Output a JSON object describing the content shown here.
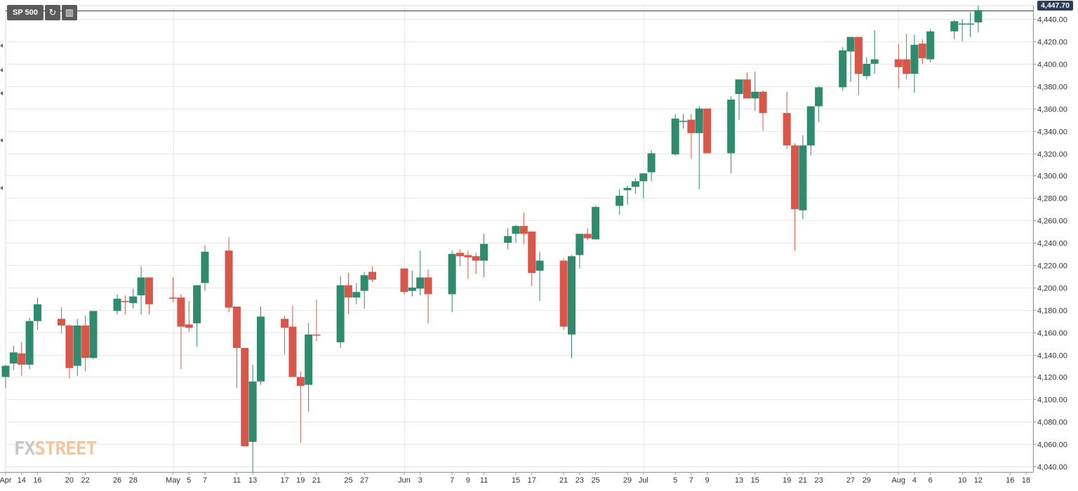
{
  "toolbar": {
    "symbol_label": "SP 500",
    "refresh_icon": "refresh-icon",
    "chart_type_icon": "candlestick-chart-icon"
  },
  "logo": {
    "part1": "FX",
    "part2": "STREET"
  },
  "last_price_label": "4,447.70",
  "colors": {
    "up": "#2e8b6e",
    "down": "#d9574a",
    "grid": "#e8e8e8",
    "axis_text": "#333333",
    "badge": "#2c3e5c"
  },
  "chart_data": {
    "type": "candlestick",
    "title": "",
    "xlabel": "",
    "ylabel": "",
    "ylim": [
      4035,
      4452
    ],
    "y_ticks": [
      "4,040.00",
      "4,060.00",
      "4,080.00",
      "4,100.00",
      "4,120.00",
      "4,140.00",
      "4,160.00",
      "4,180.00",
      "4,200.00",
      "4,220.00",
      "4,240.00",
      "4,260.00",
      "4,280.00",
      "4,300.00",
      "4,320.00",
      "4,340.00",
      "4,360.00",
      "4,380.00",
      "4,400.00",
      "4,420.00",
      "4,440.00"
    ],
    "y_tick_values": [
      4040,
      4060,
      4080,
      4100,
      4120,
      4140,
      4160,
      4180,
      4200,
      4220,
      4240,
      4260,
      4280,
      4300,
      4320,
      4340,
      4360,
      4380,
      4400,
      4420,
      4440
    ],
    "x_ticks": [
      {
        "label": "Apr",
        "day": "2021-04-12"
      },
      {
        "label": "14",
        "day": "2021-04-14"
      },
      {
        "label": "16",
        "day": "2021-04-16"
      },
      {
        "label": "20",
        "day": "2021-04-20"
      },
      {
        "label": "22",
        "day": "2021-04-22"
      },
      {
        "label": "26",
        "day": "2021-04-26"
      },
      {
        "label": "28",
        "day": "2021-04-28"
      },
      {
        "label": "May",
        "day": "2021-05-03"
      },
      {
        "label": "5",
        "day": "2021-05-05"
      },
      {
        "label": "7",
        "day": "2021-05-07"
      },
      {
        "label": "11",
        "day": "2021-05-11"
      },
      {
        "label": "13",
        "day": "2021-05-13"
      },
      {
        "label": "17",
        "day": "2021-05-17"
      },
      {
        "label": "19",
        "day": "2021-05-19"
      },
      {
        "label": "21",
        "day": "2021-05-21"
      },
      {
        "label": "25",
        "day": "2021-05-25"
      },
      {
        "label": "27",
        "day": "2021-05-27"
      },
      {
        "label": "Jun",
        "day": "2021-06-01"
      },
      {
        "label": "3",
        "day": "2021-06-03"
      },
      {
        "label": "7",
        "day": "2021-06-07"
      },
      {
        "label": "9",
        "day": "2021-06-09"
      },
      {
        "label": "11",
        "day": "2021-06-11"
      },
      {
        "label": "15",
        "day": "2021-06-15"
      },
      {
        "label": "17",
        "day": "2021-06-17"
      },
      {
        "label": "21",
        "day": "2021-06-21"
      },
      {
        "label": "23",
        "day": "2021-06-23"
      },
      {
        "label": "25",
        "day": "2021-06-25"
      },
      {
        "label": "29",
        "day": "2021-06-29"
      },
      {
        "label": "Jul",
        "day": "2021-07-01"
      },
      {
        "label": "5",
        "day": "2021-07-05"
      },
      {
        "label": "7",
        "day": "2021-07-07"
      },
      {
        "label": "9",
        "day": "2021-07-09"
      },
      {
        "label": "13",
        "day": "2021-07-13"
      },
      {
        "label": "15",
        "day": "2021-07-15"
      },
      {
        "label": "19",
        "day": "2021-07-19"
      },
      {
        "label": "21",
        "day": "2021-07-21"
      },
      {
        "label": "23",
        "day": "2021-07-23"
      },
      {
        "label": "27",
        "day": "2021-07-27"
      },
      {
        "label": "29",
        "day": "2021-07-29"
      },
      {
        "label": "Aug",
        "day": "2021-08-02"
      },
      {
        "label": "4",
        "day": "2021-08-04"
      },
      {
        "label": "6",
        "day": "2021-08-06"
      },
      {
        "label": "10",
        "day": "2021-08-10"
      },
      {
        "label": "12",
        "day": "2021-08-12"
      },
      {
        "label": "16",
        "day": "2021-08-16"
      },
      {
        "label": "18",
        "day": "2021-08-18"
      }
    ],
    "x_month_grid": [
      "2021-05-03",
      "2021-06-01",
      "2021-07-01",
      "2021-08-02"
    ],
    "x_range": [
      "2021-04-12",
      "2021-08-18"
    ],
    "grid": true,
    "last_price": 4447.7,
    "candles": [
      {
        "date": "2021-04-12",
        "open": 4120,
        "high": 4131,
        "low": 4110,
        "close": 4130
      },
      {
        "date": "2021-04-13",
        "open": 4132,
        "high": 4148,
        "low": 4126,
        "close": 4142
      },
      {
        "date": "2021-04-14",
        "open": 4141,
        "high": 4151,
        "low": 4121,
        "close": 4131
      },
      {
        "date": "2021-04-15",
        "open": 4131,
        "high": 4173,
        "low": 4127,
        "close": 4170
      },
      {
        "date": "2021-04-16",
        "open": 4170,
        "high": 4191,
        "low": 4162,
        "close": 4185
      },
      {
        "date": "2021-04-19",
        "open": 4172,
        "high": 4182,
        "low": 4159,
        "close": 4166
      },
      {
        "date": "2021-04-20",
        "open": 4166,
        "high": 4167,
        "low": 4119,
        "close": 4128
      },
      {
        "date": "2021-04-21",
        "open": 4130,
        "high": 4172,
        "low": 4121,
        "close": 4166
      },
      {
        "date": "2021-04-22",
        "open": 4166,
        "high": 4175,
        "low": 4125,
        "close": 4137
      },
      {
        "date": "2021-04-23",
        "open": 4137,
        "high": 4179,
        "low": 4136,
        "close": 4179
      },
      {
        "date": "2021-04-26",
        "open": 4179,
        "high": 4194,
        "low": 4176,
        "close": 4190
      },
      {
        "date": "2021-04-27",
        "open": 4188,
        "high": 4193,
        "low": 4176,
        "close": 4187
      },
      {
        "date": "2021-04-28",
        "open": 4186,
        "high": 4199,
        "low": 4181,
        "close": 4192
      },
      {
        "date": "2021-04-29",
        "open": 4193,
        "high": 4219,
        "low": 4176,
        "close": 4209
      },
      {
        "date": "2021-04-30",
        "open": 4209,
        "high": 4209,
        "low": 4176,
        "close": 4185
      },
      {
        "date": "2021-05-03",
        "open": 4191,
        "high": 4209,
        "low": 4187,
        "close": 4190
      },
      {
        "date": "2021-05-04",
        "open": 4191,
        "high": 4194,
        "low": 4127,
        "close": 4165
      },
      {
        "date": "2021-05-05",
        "open": 4167,
        "high": 4188,
        "low": 4160,
        "close": 4164
      },
      {
        "date": "2021-05-06",
        "open": 4168,
        "high": 4202,
        "low": 4147,
        "close": 4202
      },
      {
        "date": "2021-05-07",
        "open": 4204,
        "high": 4238,
        "low": 4197,
        "close": 4232
      },
      {
        "date": "2021-05-10",
        "open": 4233,
        "high": 4245,
        "low": 4178,
        "close": 4182
      },
      {
        "date": "2021-05-11",
        "open": 4183,
        "high": 4183,
        "low": 4110,
        "close": 4146
      },
      {
        "date": "2021-05-12",
        "open": 4146,
        "high": 4146,
        "low": 4058,
        "close": 4058
      },
      {
        "date": "2021-05-13",
        "open": 4062,
        "high": 4131,
        "low": 4035,
        "close": 4116
      },
      {
        "date": "2021-05-14",
        "open": 4116,
        "high": 4183,
        "low": 4113,
        "close": 4174
      },
      {
        "date": "2021-05-17",
        "open": 4172,
        "high": 4175,
        "low": 4140,
        "close": 4164
      },
      {
        "date": "2021-05-18",
        "open": 4165,
        "high": 4184,
        "low": 4124,
        "close": 4120
      },
      {
        "date": "2021-05-19",
        "open": 4120,
        "high": 4125,
        "low": 4061,
        "close": 4112
      },
      {
        "date": "2021-05-20",
        "open": 4113,
        "high": 4168,
        "low": 4089,
        "close": 4158
      },
      {
        "date": "2021-05-21",
        "open": 4158,
        "high": 4189,
        "low": 4152,
        "close": 4157
      },
      {
        "date": "2021-05-24",
        "open": 4151,
        "high": 4210,
        "low": 4146,
        "close": 4202
      },
      {
        "date": "2021-05-25",
        "open": 4202,
        "high": 4213,
        "low": 4176,
        "close": 4191
      },
      {
        "date": "2021-05-26",
        "open": 4191,
        "high": 4204,
        "low": 4185,
        "close": 4196
      },
      {
        "date": "2021-05-27",
        "open": 4197,
        "high": 4214,
        "low": 4181,
        "close": 4211
      },
      {
        "date": "2021-05-28",
        "open": 4214,
        "high": 4219,
        "low": 4205,
        "close": 4207
      },
      {
        "date": "2021-06-01",
        "open": 4217,
        "high": 4217,
        "low": 4194,
        "close": 4196
      },
      {
        "date": "2021-06-02",
        "open": 4197,
        "high": 4215,
        "low": 4192,
        "close": 4200
      },
      {
        "date": "2021-06-03",
        "open": 4199,
        "high": 4233,
        "low": 4193,
        "close": 4209
      },
      {
        "date": "2021-06-04",
        "open": 4209,
        "high": 4216,
        "low": 4168,
        "close": 4194
      },
      {
        "date": "2021-06-07",
        "open": 4194,
        "high": 4233,
        "low": 4178,
        "close": 4230
      },
      {
        "date": "2021-06-08",
        "open": 4231,
        "high": 4234,
        "low": 4219,
        "close": 4228
      },
      {
        "date": "2021-06-09",
        "open": 4229,
        "high": 4233,
        "low": 4208,
        "close": 4227
      },
      {
        "date": "2021-06-10",
        "open": 4228,
        "high": 4231,
        "low": 4212,
        "close": 4224
      },
      {
        "date": "2021-06-11",
        "open": 4224,
        "high": 4248,
        "low": 4209,
        "close": 4239
      },
      {
        "date": "2021-06-14",
        "open": 4240,
        "high": 4253,
        "low": 4234,
        "close": 4246
      },
      {
        "date": "2021-06-15",
        "open": 4248,
        "high": 4256,
        "low": 4240,
        "close": 4255
      },
      {
        "date": "2021-06-16",
        "open": 4255,
        "high": 4267,
        "low": 4239,
        "close": 4248
      },
      {
        "date": "2021-06-17",
        "open": 4250,
        "high": 4250,
        "low": 4201,
        "close": 4213
      },
      {
        "date": "2021-06-18",
        "open": 4215,
        "high": 4232,
        "low": 4188,
        "close": 4224
      },
      {
        "date": "2021-06-21",
        "open": 4224,
        "high": 4226,
        "low": 4162,
        "close": 4165
      },
      {
        "date": "2021-06-22",
        "open": 4158,
        "high": 4229,
        "low": 4137,
        "close": 4228
      },
      {
        "date": "2021-06-23",
        "open": 4229,
        "high": 4248,
        "low": 4217,
        "close": 4248
      },
      {
        "date": "2021-06-24",
        "open": 4248,
        "high": 4253,
        "low": 4242,
        "close": 4244
      },
      {
        "date": "2021-06-25",
        "open": 4243,
        "high": 4273,
        "low": 4243,
        "close": 4272
      },
      {
        "date": "2021-06-28",
        "open": 4273,
        "high": 4288,
        "low": 4265,
        "close": 4282
      },
      {
        "date": "2021-06-29",
        "open": 4287,
        "high": 4291,
        "low": 4274,
        "close": 4289
      },
      {
        "date": "2021-06-30",
        "open": 4290,
        "high": 4298,
        "low": 4284,
        "close": 4295
      },
      {
        "date": "2021-07-01",
        "open": 4295,
        "high": 4302,
        "low": 4280,
        "close": 4302
      },
      {
        "date": "2021-07-02",
        "open": 4303,
        "high": 4323,
        "low": 4295,
        "close": 4320
      },
      {
        "date": "2021-07-05",
        "open": 4319,
        "high": 4355,
        "low": 4318,
        "close": 4351
      },
      {
        "date": "2021-07-06",
        "open": 4348,
        "high": 4355,
        "low": 4342,
        "close": 4349
      },
      {
        "date": "2021-07-07",
        "open": 4350,
        "high": 4355,
        "low": 4315,
        "close": 4338
      },
      {
        "date": "2021-07-08",
        "open": 4338,
        "high": 4362,
        "low": 4288,
        "close": 4360
      },
      {
        "date": "2021-07-09",
        "open": 4360,
        "high": 4360,
        "low": 4322,
        "close": 4320
      },
      {
        "date": "2021-07-12",
        "open": 4320,
        "high": 4371,
        "low": 4302,
        "close": 4368
      },
      {
        "date": "2021-07-13",
        "open": 4373,
        "high": 4386,
        "low": 4350,
        "close": 4386
      },
      {
        "date": "2021-07-14",
        "open": 4386,
        "high": 4392,
        "low": 4371,
        "close": 4369
      },
      {
        "date": "2021-07-15",
        "open": 4369,
        "high": 4393,
        "low": 4358,
        "close": 4375
      },
      {
        "date": "2021-07-16",
        "open": 4375,
        "high": 4376,
        "low": 4340,
        "close": 4356
      },
      {
        "date": "2021-07-19",
        "open": 4356,
        "high": 4375,
        "low": 4324,
        "close": 4327
      },
      {
        "date": "2021-07-20",
        "open": 4327,
        "high": 4329,
        "low": 4233,
        "close": 4270
      },
      {
        "date": "2021-07-21",
        "open": 4269,
        "high": 4336,
        "low": 4261,
        "close": 4327
      },
      {
        "date": "2021-07-22",
        "open": 4327,
        "high": 4359,
        "low": 4318,
        "close": 4362
      },
      {
        "date": "2021-07-23",
        "open": 4362,
        "high": 4380,
        "low": 4348,
        "close": 4379
      },
      {
        "date": "2021-07-26",
        "open": 4379,
        "high": 4415,
        "low": 4376,
        "close": 4412
      },
      {
        "date": "2021-07-27",
        "open": 4411,
        "high": 4424,
        "low": 4384,
        "close": 4424
      },
      {
        "date": "2021-07-28",
        "open": 4424,
        "high": 4424,
        "low": 4372,
        "close": 4391
      },
      {
        "date": "2021-07-29",
        "open": 4389,
        "high": 4406,
        "low": 4386,
        "close": 4400
      },
      {
        "date": "2021-07-30",
        "open": 4400,
        "high": 4430,
        "low": 4391,
        "close": 4404
      },
      {
        "date": "2021-08-02",
        "open": 4404,
        "high": 4418,
        "low": 4378,
        "close": 4397
      },
      {
        "date": "2021-08-03",
        "open": 4404,
        "high": 4427,
        "low": 4386,
        "close": 4391
      },
      {
        "date": "2021-08-04",
        "open": 4391,
        "high": 4426,
        "low": 4374,
        "close": 4417
      },
      {
        "date": "2021-08-05",
        "open": 4418,
        "high": 4422,
        "low": 4400,
        "close": 4405
      },
      {
        "date": "2021-08-06",
        "open": 4404,
        "high": 4431,
        "low": 4401,
        "close": 4429
      },
      {
        "date": "2021-08-09",
        "open": 4429,
        "high": 4439,
        "low": 4422,
        "close": 4438
      },
      {
        "date": "2021-08-10",
        "open": 4436,
        "high": 4440,
        "low": 4420,
        "close": 4436
      },
      {
        "date": "2021-08-11",
        "open": 4436,
        "high": 4446,
        "low": 4424,
        "close": 4436
      },
      {
        "date": "2021-08-12",
        "open": 4437,
        "high": 4452,
        "low": 4428,
        "close": 4448
      }
    ]
  }
}
